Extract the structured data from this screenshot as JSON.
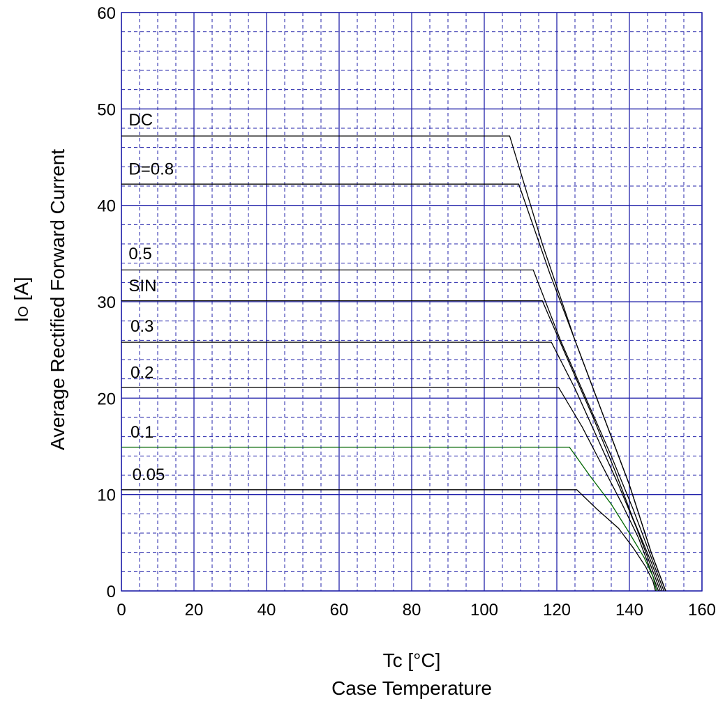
{
  "chart_data": {
    "type": "line",
    "xlabel_line1": "Tc  [°C]",
    "xlabel_line2": "Case Temperature",
    "ylabel_main": "I",
    "ylabel_sub": "O",
    "ylabel_unit": " [A]",
    "ylabel_line2": "Average Rectified Forward Current",
    "xlim": [
      0,
      160
    ],
    "ylim": [
      0,
      60
    ],
    "x_major_ticks": [
      0,
      20,
      40,
      60,
      80,
      100,
      120,
      140,
      160
    ],
    "x_tick_labels": [
      "0",
      "20",
      "40",
      "60",
      "80",
      "100",
      "120",
      "140",
      "160"
    ],
    "x_minor_step": 5,
    "y_major_ticks": [
      0,
      10,
      20,
      30,
      40,
      50,
      60
    ],
    "y_tick_labels": [
      "0",
      "10",
      "20",
      "30",
      "40",
      "50",
      "60"
    ],
    "y_minor_step": 2,
    "grid": true,
    "colors": {
      "grid_major": "#2222aa",
      "grid_minor": "#2222aa",
      "series": "#000000",
      "series_green": "#006600"
    },
    "series": [
      {
        "name": "DC",
        "color": "#000000",
        "points": [
          [
            0,
            47.2
          ],
          [
            107,
            47.2
          ],
          [
            116,
            36
          ],
          [
            125,
            26
          ],
          [
            134,
            17
          ],
          [
            140,
            11
          ],
          [
            146,
            4
          ],
          [
            150,
            0
          ]
        ]
      },
      {
        "name": "D=0.8",
        "color": "#000000",
        "points": [
          [
            0,
            42.2
          ],
          [
            109.5,
            42.2
          ],
          [
            118,
            33
          ],
          [
            126,
            25
          ],
          [
            134,
            17
          ],
          [
            140,
            11
          ],
          [
            146,
            4
          ],
          [
            150,
            0
          ]
        ]
      },
      {
        "name": "0.5",
        "color": "#000000",
        "points": [
          [
            0,
            33.3
          ],
          [
            113.5,
            33.3
          ],
          [
            121,
            26
          ],
          [
            128,
            20
          ],
          [
            135,
            14
          ],
          [
            141,
            8.5
          ],
          [
            146,
            3.5
          ],
          [
            149.5,
            0
          ]
        ]
      },
      {
        "name": "SIN",
        "color": "#000000",
        "points": [
          [
            0,
            30.1
          ],
          [
            116,
            30.1
          ],
          [
            123,
            24
          ],
          [
            130,
            18
          ],
          [
            136,
            12.5
          ],
          [
            141,
            7.5
          ],
          [
            146,
            3
          ],
          [
            149,
            0
          ]
        ]
      },
      {
        "name": "0.3",
        "color": "#000000",
        "points": [
          [
            0,
            25.8
          ],
          [
            118.5,
            25.8
          ],
          [
            125,
            21
          ],
          [
            131,
            16
          ],
          [
            137,
            11
          ],
          [
            142,
            6.5
          ],
          [
            146,
            2.5
          ],
          [
            148.5,
            0
          ]
        ]
      },
      {
        "name": "0.2",
        "color": "#000000",
        "points": [
          [
            0,
            21.1
          ],
          [
            120.5,
            21.1
          ],
          [
            127,
            17
          ],
          [
            132.5,
            13
          ],
          [
            138,
            9
          ],
          [
            142.5,
            5.5
          ],
          [
            146,
            2
          ],
          [
            148,
            0
          ]
        ]
      },
      {
        "name": "0.1",
        "color": "#006600",
        "points": [
          [
            0,
            14.9
          ],
          [
            123.5,
            14.9
          ],
          [
            129,
            12
          ],
          [
            135,
            9
          ],
          [
            140,
            6
          ],
          [
            144,
            3.5
          ],
          [
            146.5,
            1.5
          ],
          [
            147.5,
            0
          ]
        ]
      },
      {
        "name": "0.05",
        "color": "#000000",
        "points": [
          [
            0,
            10.5
          ],
          [
            125.5,
            10.5
          ],
          [
            131,
            8.5
          ],
          [
            137,
            6.5
          ],
          [
            141,
            4.5
          ],
          [
            144.5,
            2.5
          ],
          [
            146.5,
            1
          ],
          [
            147.2,
            0
          ]
        ]
      }
    ],
    "series_labels": [
      {
        "text": "DC",
        "x": 2,
        "y": 48.3
      },
      {
        "text": "D=0.8",
        "x": 2,
        "y": 43.2
      },
      {
        "text": "0.5",
        "x": 2,
        "y": 34.4
      },
      {
        "text": "SIN",
        "x": 2,
        "y": 31.1
      },
      {
        "text": "0.3",
        "x": 2.5,
        "y": 26.9
      },
      {
        "text": "0.2",
        "x": 2.5,
        "y": 22.1
      },
      {
        "text": "0.1",
        "x": 2.5,
        "y": 15.9
      },
      {
        "text": "0.05",
        "x": 3,
        "y": 11.5
      }
    ]
  }
}
